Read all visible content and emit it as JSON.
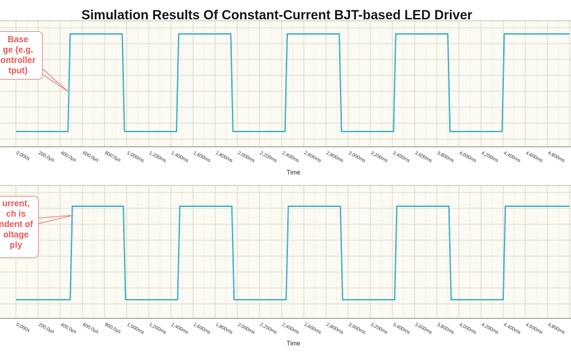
{
  "title": "Simulation Results Of Constant-Current BJT-based LED Driver",
  "colors": {
    "trace": "#4bb3c7",
    "grid": "#d8d8c8",
    "plot_bg": "#fbfbf3",
    "callout_text": "#f05a5a",
    "callout_border": "#f08a8a"
  },
  "chart_data": [
    {
      "type": "line",
      "xlabel": "Time",
      "xlim": [
        0,
        5
      ],
      "x_unit": "ms",
      "tick_labels": [
        "0,000s",
        "200,0µs",
        "400,0µs",
        "600,0µs",
        "800,0µs",
        "1,000ms",
        "1,200ms",
        "1,400ms",
        "1,600ms",
        "1,800ms",
        "2,000ms",
        "2,200ms",
        "2,400ms",
        "2,600ms",
        "2,800ms",
        "3,000ms",
        "3,200ms",
        "3,400ms",
        "3,600ms",
        "3,800ms",
        "4,000ms",
        "4,200ms",
        "4,400ms",
        "4,600ms",
        "4,800ms"
      ],
      "levels": {
        "low": 0,
        "high": 1
      },
      "series": [
        {
          "x": [
            0,
            0.47,
            0.49,
            0.96,
            0.98,
            1.45,
            1.47,
            1.94,
            1.96,
            2.43,
            2.45,
            2.92,
            2.94,
            3.41,
            3.43,
            3.9,
            3.92,
            4.39,
            4.41,
            5.0
          ],
          "y": [
            0,
            0,
            1,
            1,
            0,
            0,
            1,
            1,
            0,
            0,
            1,
            1,
            0,
            0,
            1,
            1,
            0,
            0,
            1,
            1
          ]
        }
      ],
      "annotation": [
        "Base",
        "ge (e.g.",
        "ontroller",
        "tput)"
      ]
    },
    {
      "type": "line",
      "xlabel": "Time",
      "xlim": [
        0,
        5
      ],
      "x_unit": "ms",
      "tick_labels": [
        "0,000s",
        "200,0µs",
        "400,0µs",
        "600,0µs",
        "800,0µs",
        "1,000ms",
        "1,200ms",
        "1,400ms",
        "1,600ms",
        "1,800ms",
        "2,000ms",
        "2,200ms",
        "2,400ms",
        "2,600ms",
        "2,800ms",
        "3,000ms",
        "3,200ms",
        "3,400ms",
        "3,600ms",
        "3,800ms",
        "4,000ms",
        "4,200ms",
        "4,400ms",
        "4,600ms",
        "4,800ms"
      ],
      "levels": {
        "low": 0,
        "high": 1
      },
      "series": [
        {
          "x": [
            0,
            0.49,
            0.51,
            0.97,
            0.99,
            1.46,
            1.48,
            1.95,
            1.97,
            2.44,
            2.46,
            2.93,
            2.95,
            3.42,
            3.44,
            3.91,
            3.93,
            4.4,
            4.42,
            5.0
          ],
          "y": [
            0,
            0,
            1,
            1,
            0,
            0,
            1,
            1,
            0,
            0,
            1,
            1,
            0,
            0,
            1,
            1,
            0,
            0,
            1,
            1
          ]
        }
      ],
      "annotation": [
        "urrent,",
        "ch is",
        "ndent of",
        "oltage",
        "ply"
      ]
    }
  ]
}
